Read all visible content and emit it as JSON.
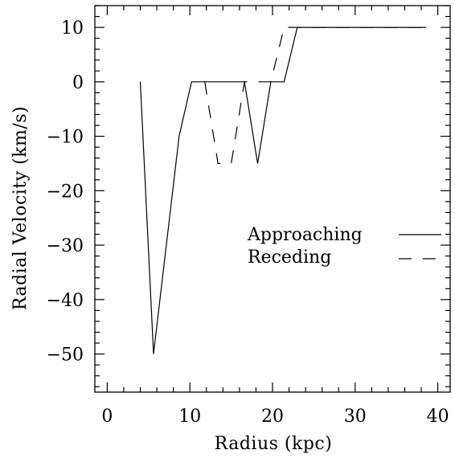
{
  "chart_data": {
    "type": "line",
    "title": "",
    "xlabel": "Radius (kpc)",
    "ylabel": "Radial Velocity (km/s)",
    "xlim": [
      -1.5,
      41.5
    ],
    "ylim": [
      -57,
      14
    ],
    "x_ticks_major": [
      0,
      10,
      20,
      30,
      40
    ],
    "x_tick_labels": [
      "0",
      "10",
      "20",
      "30",
      "40"
    ],
    "y_ticks_major": [
      10,
      0,
      -10,
      -20,
      -30,
      -40,
      -50
    ],
    "y_tick_labels": [
      "10",
      "0",
      "−10",
      "−20",
      "−30",
      "−40",
      "−50"
    ],
    "grid": false,
    "legend_position": "right",
    "series": [
      {
        "name": "Approaching",
        "style": "solid",
        "color": "#000000",
        "x": [
          4,
          5.6,
          8.7,
          10.2,
          16.6,
          18.2,
          19.8,
          21.4,
          23.0,
          38.6
        ],
        "y": [
          0,
          -50,
          -10,
          0,
          0,
          -15,
          0,
          0,
          10,
          10
        ]
      },
      {
        "name": "Receding",
        "style": "dashed",
        "color": "#000000",
        "x": [
          11.8,
          13.4,
          15.0,
          16.6,
          18.2,
          19.8,
          21.4,
          38.6
        ],
        "y": [
          0,
          -15,
          -15,
          0,
          0,
          0,
          10,
          10
        ]
      }
    ]
  }
}
